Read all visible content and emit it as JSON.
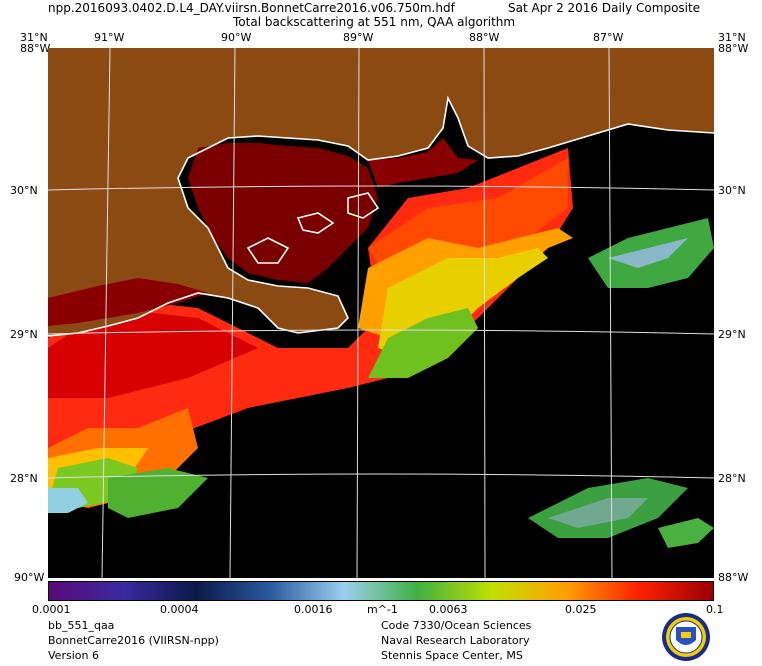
{
  "header": {
    "file": "npp.2016093.0402.D.L4_DAY.viirsn.BonnetCarre2016.v06.750m.hdf",
    "date": "Sat Apr  2 2016 Daily Composite",
    "product": "Total backscattering at 551 nm, QAA algorithm"
  },
  "top_lon_labels": [
    "31°N",
    "91°W",
    "90°W",
    "89°W",
    "88°W",
    "87°W",
    "31°N"
  ],
  "top_corner_sub": [
    "88°W",
    "88°W"
  ],
  "left_lat_labels": [
    "30°N",
    "29°N",
    "28°N"
  ],
  "right_lat_labels": [
    "30°N",
    "29°N",
    "28°N"
  ],
  "bottom_corner_labels": [
    "90°W",
    "88°W"
  ],
  "colorbar": {
    "ticks": [
      "0.0001",
      "0.0004",
      "0.0016",
      "m^-1",
      "0.0063",
      "0.025",
      "0.1"
    ],
    "colors": [
      "#5a0a7a",
      "#3a2aa0",
      "#0a1a4a",
      "#2a5aa0",
      "#9ad0f0",
      "#40b040",
      "#c0e000",
      "#ffa000",
      "#ff2000",
      "#9a0000"
    ]
  },
  "footer_left": [
    "bb_551_qaa",
    "BonnetCarre2016 (VIIRSN-npp)",
    "Version 6"
  ],
  "footer_right": [
    "Code 7330/Ocean Sciences",
    "Naval Research Laboratory",
    "Stennis Space Center, MS"
  ],
  "seal": {
    "name": "nrl-seal-icon"
  }
}
